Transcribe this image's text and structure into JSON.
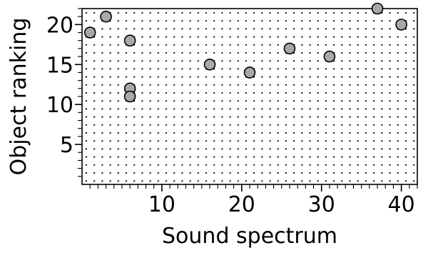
{
  "chart_data": {
    "type": "scatter",
    "title": "",
    "xlabel": "Sound spectrum",
    "ylabel": "Object ranking",
    "xlim": [
      0,
      42
    ],
    "ylim": [
      0,
      22
    ],
    "x_ticks": [
      10,
      20,
      30,
      40
    ],
    "y_ticks": [
      5,
      10,
      15,
      20
    ],
    "x_minor_step": 1,
    "y_minor_step": 1,
    "grid": "dotted",
    "points": [
      {
        "x": 1,
        "y": 19
      },
      {
        "x": 3,
        "y": 21
      },
      {
        "x": 6,
        "y": 18
      },
      {
        "x": 6,
        "y": 12
      },
      {
        "x": 6,
        "y": 11
      },
      {
        "x": 16,
        "y": 15
      },
      {
        "x": 21,
        "y": 14
      },
      {
        "x": 26,
        "y": 17
      },
      {
        "x": 31,
        "y": 16
      },
      {
        "x": 37,
        "y": 22
      },
      {
        "x": 40,
        "y": 20
      }
    ],
    "marker_fill": "#a8a8a8",
    "marker_stroke": "#000000"
  }
}
